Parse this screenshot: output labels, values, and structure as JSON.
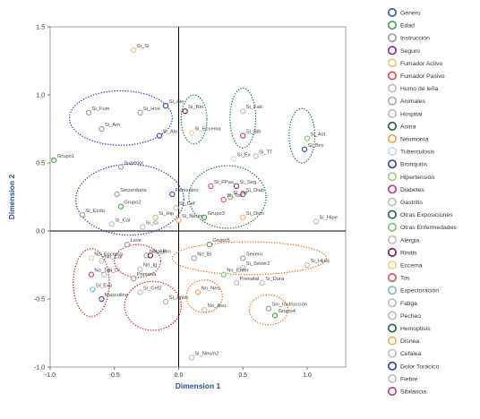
{
  "chart_data": {
    "type": "scatter",
    "xlabel": "Dimension 1",
    "ylabel": "Dimension 2",
    "xlim": [
      -1.0,
      1.3
    ],
    "ylim": [
      -1.0,
      1.5
    ],
    "xticks": [
      "-1.0",
      "-0.5",
      "0.0",
      "0.5",
      "1.0"
    ],
    "yticks": [
      "-1.0",
      "-0.5",
      "0.0",
      "0.5",
      "1.0",
      "1.5"
    ],
    "reference_lines": {
      "x": 0,
      "y": 0
    },
    "legend_position": "right",
    "legend": [
      {
        "name": "Género",
        "color": "#2b4fa8"
      },
      {
        "name": "Edad",
        "color": "#3aa047"
      },
      {
        "name": "Instrucción",
        "color": "#999999"
      },
      {
        "name": "Seguro",
        "color": "#7a2b8e"
      },
      {
        "name": "Fumador Activo",
        "color": "#e8c36a"
      },
      {
        "name": "Fumador Pasivo",
        "color": "#e04848"
      },
      {
        "name": "Humo de leña",
        "color": "#bbbbbb"
      },
      {
        "name": "Animales",
        "color": "#aaaaaa"
      },
      {
        "name": "Hospital",
        "color": "#bbbbbb"
      },
      {
        "name": "Asma",
        "color": "#1f5f3f"
      },
      {
        "name": "Neumonía",
        "color": "#f0a04a"
      },
      {
        "name": "Tuberculosis",
        "color": "#b8dcef"
      },
      {
        "name": "Bronquitis",
        "color": "#2b3f9e"
      },
      {
        "name": "Hipertensión",
        "color": "#9ad07a"
      },
      {
        "name": "Diabetes",
        "color": "#b8388a"
      },
      {
        "name": "Gastritis",
        "color": "#bbbbbb"
      },
      {
        "name": "Otras Exposiciones",
        "color": "#1f5f3f"
      },
      {
        "name": "Otras Enfermedades",
        "color": "#7abf6e"
      },
      {
        "name": "Alergia",
        "color": "#bbbbbb"
      },
      {
        "name": "Rinitis",
        "color": "#6a1b5e"
      },
      {
        "name": "Eccema",
        "color": "#f2d28a"
      },
      {
        "name": "Tos",
        "color": "#e04848"
      },
      {
        "name": "Expectoración",
        "color": "#6fb6d8"
      },
      {
        "name": "Fatiga",
        "color": "#bbbbbb"
      },
      {
        "name": "Pecheo",
        "color": "#bbbbbb"
      },
      {
        "name": "Hemoptisis",
        "color": "#1f5f3f"
      },
      {
        "name": "Disnea",
        "color": "#f0b050"
      },
      {
        "name": "Cefalea",
        "color": "#bbbbbb"
      },
      {
        "name": "Dolor Torácico",
        "color": "#2b3f9e"
      },
      {
        "name": "Fiebre",
        "color": "#bbbbbb"
      },
      {
        "name": "Sibilancia",
        "color": "#b8388a"
      }
    ],
    "points": [
      {
        "label": "Si_Si",
        "x": -0.35,
        "y": 1.33,
        "color": "#e8c36a"
      },
      {
        "label": "Si_Fum",
        "x": -0.7,
        "y": 0.87,
        "color": "#999999"
      },
      {
        "label": "Si_Am",
        "x": -0.6,
        "y": 0.75,
        "color": "#999999"
      },
      {
        "label": "Si_Hos",
        "x": -0.3,
        "y": 0.87,
        "color": "#999999"
      },
      {
        "label": "Si_Ale",
        "x": -0.1,
        "y": 0.92,
        "color": "#2b3f9e"
      },
      {
        "label": "Si_Alo",
        "x": -0.15,
        "y": 0.7,
        "color": "#2b3f9e"
      },
      {
        "label": "Si_Rin",
        "x": 0.05,
        "y": 0.88,
        "color": "#6a1b5e"
      },
      {
        "label": "Si_Eccema",
        "x": 0.1,
        "y": 0.72,
        "color": "#f2d28a"
      },
      {
        "label": "Si_Fati",
        "x": 0.5,
        "y": 0.88,
        "color": "#bbbbbb"
      },
      {
        "label": "Si_Sib",
        "x": 0.5,
        "y": 0.7,
        "color": "#b8388a"
      },
      {
        "label": "Si_Ex",
        "x": 0.43,
        "y": 0.53,
        "color": "#b8dcef"
      },
      {
        "label": "Si_TT",
        "x": 0.6,
        "y": 0.55,
        "color": "#bbbbbb"
      },
      {
        "label": "Si_Ast",
        "x": 1.0,
        "y": 0.68,
        "color": "#7abf6e"
      },
      {
        "label": "Si_Bro",
        "x": 0.98,
        "y": 0.6,
        "color": "#2b3f9e"
      },
      {
        "label": "Grupo1",
        "x": -0.97,
        "y": 0.52,
        "color": "#3aa047"
      },
      {
        "label": "Superior",
        "x": -0.45,
        "y": 0.47,
        "color": "#999999"
      },
      {
        "label": "Secundaria",
        "x": -0.48,
        "y": 0.27,
        "color": "#999999"
      },
      {
        "label": "Grupo2",
        "x": -0.45,
        "y": 0.18,
        "color": "#3aa047"
      },
      {
        "label": "Si_Ecdo",
        "x": -0.75,
        "y": 0.12,
        "color": "#999999"
      },
      {
        "label": "Si_Cal",
        "x": -0.52,
        "y": 0.05,
        "color": "#bbbbbb"
      },
      {
        "label": "Si_Hip",
        "x": -0.18,
        "y": 0.1,
        "color": "#9ad07a"
      },
      {
        "label": "Si_Ci",
        "x": -0.28,
        "y": 0.03,
        "color": "#bbbbbb"
      },
      {
        "label": "Femenino",
        "x": -0.05,
        "y": 0.27,
        "color": "#2b4fa8"
      },
      {
        "label": "Si_Cef",
        "x": -0.02,
        "y": 0.17,
        "color": "#bbbbbb"
      },
      {
        "label": "Si_Neum",
        "x": 0.0,
        "y": 0.08,
        "color": "#f0a04a"
      },
      {
        "label": "Si_FPas",
        "x": 0.25,
        "y": 0.33,
        "color": "#e04848"
      },
      {
        "label": "Si_Seg",
        "x": 0.45,
        "y": 0.33,
        "color": "#7a2b8e"
      },
      {
        "label": "Si_Tos",
        "x": 0.35,
        "y": 0.23,
        "color": "#e04848"
      },
      {
        "label": "Si_Otr",
        "x": 0.4,
        "y": 0.25,
        "color": "#7abf6e"
      },
      {
        "label": "Si_Diab",
        "x": 0.5,
        "y": 0.27,
        "color": "#b8388a"
      },
      {
        "label": "Si_Disn",
        "x": 0.5,
        "y": 0.1,
        "color": "#f0b050"
      },
      {
        "label": "Grupo3",
        "x": 0.2,
        "y": 0.1,
        "color": "#3aa047"
      },
      {
        "label": "Si_Hipe",
        "x": 1.07,
        "y": 0.07,
        "color": "#bbbbbb"
      },
      {
        "label": "Grupo5",
        "x": 0.24,
        "y": -0.1,
        "color": "#3aa047"
      },
      {
        "label": "Leve",
        "x": -0.4,
        "y": -0.1,
        "color": "#999999"
      },
      {
        "label": "No_Ale",
        "x": -0.25,
        "y": -0.18,
        "color": "#999999"
      },
      {
        "label": "No_Rin",
        "x": -0.22,
        "y": -0.18,
        "color": "#6a1b5e"
      },
      {
        "label": "No_Eccema",
        "x": -0.68,
        "y": -0.2,
        "color": "#f2d28a"
      },
      {
        "label": "No_Cal",
        "x": -0.6,
        "y": -0.22,
        "color": "#bbbbbb"
      },
      {
        "label": "No_Tos",
        "x": -0.68,
        "y": -0.32,
        "color": "#e04848"
      },
      {
        "label": "Si_Di",
        "x": -0.58,
        "y": -0.32,
        "color": "#bbbbbb"
      },
      {
        "label": "Si_Exp",
        "x": -0.67,
        "y": -0.43,
        "color": "#6fb6d8"
      },
      {
        "label": "Masculino",
        "x": -0.6,
        "y": -0.5,
        "color": "#2b4fa8"
      },
      {
        "label": "No_Ig",
        "x": -0.3,
        "y": -0.28,
        "color": "#bbbbbb"
      },
      {
        "label": "Primaria",
        "x": -0.35,
        "y": -0.35,
        "color": "#999999"
      },
      {
        "label": "Si_Cef2",
        "x": -0.3,
        "y": -0.45,
        "color": "#bbbbbb"
      },
      {
        "label": "Si_Anim",
        "x": -0.1,
        "y": -0.52,
        "color": "#aaaaaa"
      },
      {
        "label": "No_Bl",
        "x": 0.12,
        "y": -0.2,
        "color": "#999999"
      },
      {
        "label": "Severo",
        "x": 0.5,
        "y": -0.2,
        "color": "#999999"
      },
      {
        "label": "Si_Sever2",
        "x": 0.5,
        "y": -0.27,
        "color": "#bbbbbb"
      },
      {
        "label": "No_Enfer",
        "x": 0.35,
        "y": -0.32,
        "color": "#7abf6e"
      },
      {
        "label": "Prenatal",
        "x": 0.45,
        "y": -0.38,
        "color": "#bbbbbb"
      },
      {
        "label": "Si_Dura",
        "x": 0.65,
        "y": -0.38,
        "color": "#bbbbbb"
      },
      {
        "label": "Si_Hijos",
        "x": 1.0,
        "y": -0.25,
        "color": "#bbbbbb"
      },
      {
        "label": "No_Neu",
        "x": 0.15,
        "y": -0.45,
        "color": "#f0a04a"
      },
      {
        "label": "No_Asu",
        "x": 0.2,
        "y": -0.58,
        "color": "#bbbbbb"
      },
      {
        "label": "Sin_Instrucción",
        "x": 0.7,
        "y": -0.57,
        "color": "#999999"
      },
      {
        "label": "Grupo4",
        "x": 0.75,
        "y": -0.62,
        "color": "#3aa047"
      },
      {
        "label": "Si_Neum2",
        "x": 0.1,
        "y": -0.93,
        "color": "#bbbbbb"
      }
    ],
    "ellipses": [
      {
        "cx": -0.45,
        "cy": 0.83,
        "rx": 0.4,
        "ry": 0.2,
        "color": "#1f3fd6"
      },
      {
        "cx": 0.12,
        "cy": 0.82,
        "rx": 0.1,
        "ry": 0.18,
        "color": "#1f7a3a"
      },
      {
        "cx": 0.5,
        "cy": 0.83,
        "rx": 0.1,
        "ry": 0.22,
        "color": "#1f7a3a"
      },
      {
        "cx": 0.96,
        "cy": 0.7,
        "rx": 0.1,
        "ry": 0.2,
        "color": "#1f7a3a"
      },
      {
        "cx": -0.38,
        "cy": 0.23,
        "rx": 0.42,
        "ry": 0.26,
        "color": "#1f3fd6"
      },
      {
        "cx": 0.38,
        "cy": 0.25,
        "rx": 0.3,
        "ry": 0.23,
        "color": "#1f7a3a"
      },
      {
        "cx": -0.68,
        "cy": -0.38,
        "rx": 0.14,
        "ry": 0.25,
        "color": "#e01f1f"
      },
      {
        "cx": -0.32,
        "cy": -0.22,
        "rx": 0.18,
        "ry": 0.12,
        "color": "#e01f1f"
      },
      {
        "cx": -0.2,
        "cy": -0.55,
        "rx": 0.22,
        "ry": 0.18,
        "color": "#e01f1f"
      },
      {
        "cx": 0.55,
        "cy": -0.2,
        "rx": 0.6,
        "ry": 0.12,
        "color": "#e07a1f"
      },
      {
        "cx": 0.2,
        "cy": -0.48,
        "rx": 0.14,
        "ry": 0.12,
        "color": "#e07a1f"
      },
      {
        "cx": 0.7,
        "cy": -0.58,
        "rx": 0.15,
        "ry": 0.11,
        "color": "#e07a1f"
      }
    ]
  }
}
